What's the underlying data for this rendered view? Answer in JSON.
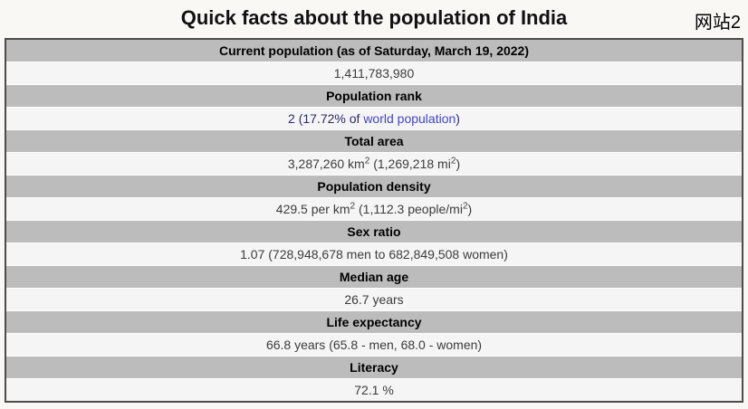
{
  "page": {
    "title": "Quick facts about the population of India",
    "site_label": "网站2"
  },
  "colors": {
    "page_bg": "#f9f8f5",
    "header_bg": "#bcbcbc",
    "value_bg": "#f5f5f5",
    "table_border": "#4c4c4c",
    "header_text": "#000000",
    "value_text": "#3c3c3c",
    "rank_text": "#2a2a6e",
    "link_color": "#4343cd",
    "title_color": "#111111"
  },
  "table": {
    "rows": [
      {
        "header": "Current population (as of Saturday, March 19, 2022)",
        "value": [
          {
            "text": "1,411,783,980"
          }
        ]
      },
      {
        "header": "Population rank",
        "value": [
          {
            "text": "2 (17.72% of ",
            "cls": "rank-text"
          },
          {
            "text": "world population",
            "link": true,
            "name": "world-population-link"
          },
          {
            "text": ")",
            "cls": "rank-text"
          }
        ]
      },
      {
        "header": "Total area",
        "value": [
          {
            "text": "3,287,260 km"
          },
          {
            "text": "2",
            "sup": true
          },
          {
            "text": " (1,269,218 mi"
          },
          {
            "text": "2",
            "sup": true
          },
          {
            "text": ")"
          }
        ]
      },
      {
        "header": "Population density",
        "value": [
          {
            "text": "429.5 per km"
          },
          {
            "text": "2",
            "sup": true
          },
          {
            "text": " (1,112.3 people/mi"
          },
          {
            "text": "2",
            "sup": true
          },
          {
            "text": ")"
          }
        ]
      },
      {
        "header": "Sex ratio",
        "value": [
          {
            "text": "1.07 (728,948,678 men to 682,849,508 women)"
          }
        ]
      },
      {
        "header": "Median age",
        "value": [
          {
            "text": "26.7 years"
          }
        ]
      },
      {
        "header": "Life expectancy",
        "value": [
          {
            "text": "66.8 years (65.8 - men, 68.0 - women)"
          }
        ]
      },
      {
        "header": "Literacy",
        "value": [
          {
            "text": "72.1 %"
          }
        ]
      }
    ]
  }
}
